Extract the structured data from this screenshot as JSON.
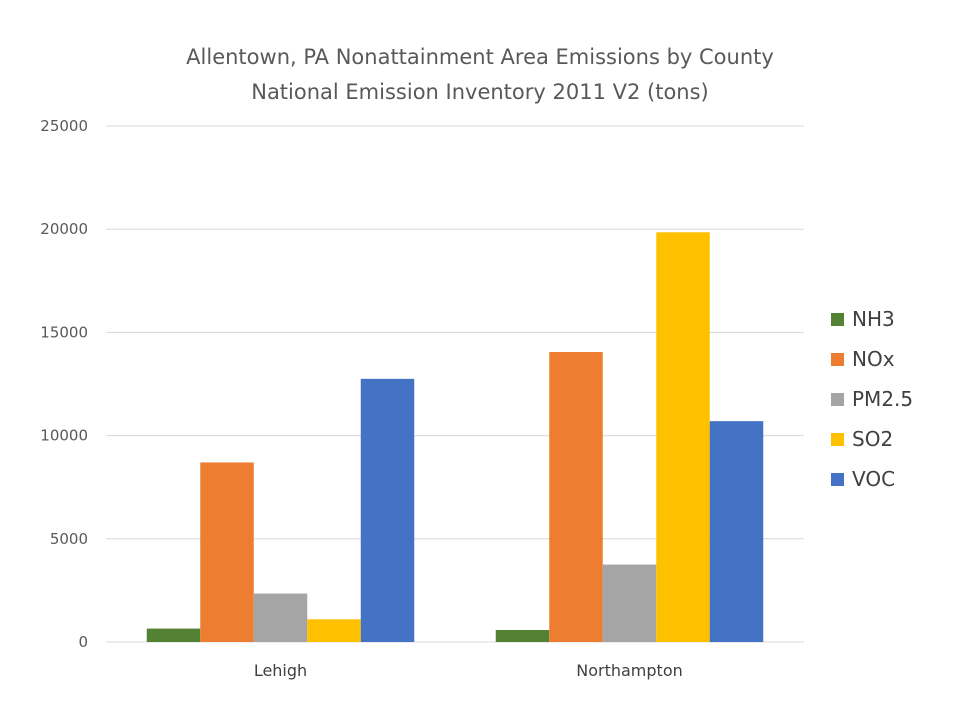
{
  "chart_data": {
    "type": "bar",
    "title": "Allentown, PA Nonattainment Area Emissions by County",
    "subtitle": "National Emission Inventory 2011 V2 (tons)",
    "xlabel": "",
    "ylabel": "",
    "ylim": [
      0,
      25000
    ],
    "yticks": [
      "0",
      "5000",
      "10000",
      "15000",
      "20000",
      "25000"
    ],
    "categories": [
      "Lehigh",
      "Northampton"
    ],
    "series": [
      {
        "name": "NH3",
        "color": "#548235",
        "values": [
          650,
          580
        ]
      },
      {
        "name": "NOx",
        "color": "#ed7d31",
        "values": [
          8700,
          14050
        ]
      },
      {
        "name": "PM2.5",
        "color": "#a5a5a5",
        "values": [
          2350,
          3750
        ]
      },
      {
        "name": "SO2",
        "color": "#ffc000",
        "values": [
          1100,
          19850
        ]
      },
      {
        "name": "VOC",
        "color": "#4472c4",
        "values": [
          12750,
          10700
        ]
      }
    ],
    "grid": true,
    "legend": "right"
  }
}
